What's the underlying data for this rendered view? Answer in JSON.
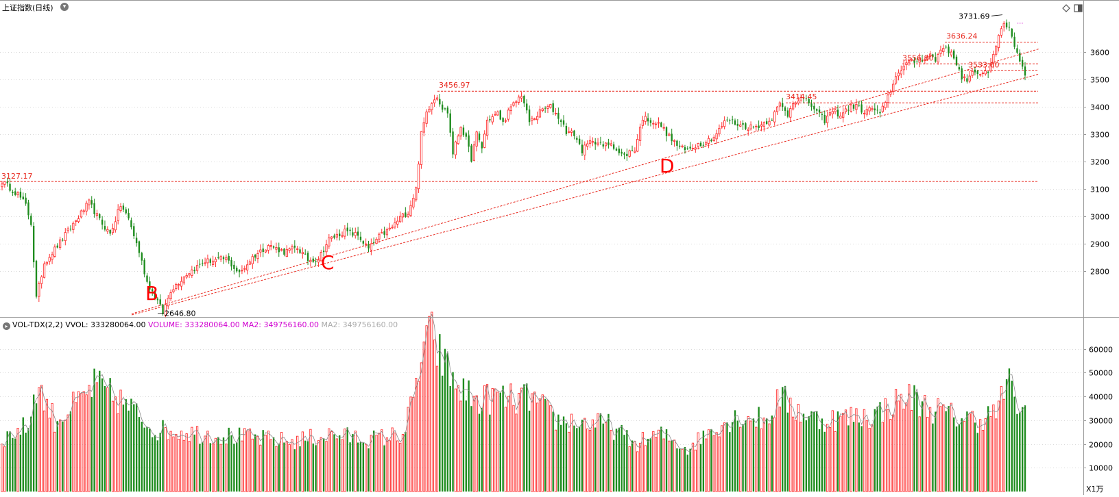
{
  "header": {
    "title": "上证指数(日线)",
    "title_button_icon": "chevron-down-icon",
    "corner_icons": [
      "diamond-icon",
      "panel-toggle-icon"
    ]
  },
  "volume_header": {
    "indicator": "VOL-TDX(2,2)",
    "vvol": "VVOL: 333280064.00",
    "volume": "VOLUME: 333280064.00",
    "ma2": "MA2: 349756160.00",
    "ma2_ghost": "MA2: 349756160.00"
  },
  "unit_label": "X1万",
  "colors": {
    "up": "#ff3232",
    "down": "#1e8c1e",
    "grid": "#b4b4b4",
    "guide": "#e8281e",
    "ma": "#888888",
    "axis": "#999999"
  },
  "chart_data": [
    {
      "type": "candlestick",
      "title": "上证指数(日线)",
      "ylim": [
        2640,
        3740
      ],
      "y_ticks": [
        2800,
        2900,
        3000,
        3100,
        3200,
        3300,
        3400,
        3500,
        3600
      ],
      "grid": true,
      "annotations": {
        "price_labels": [
          {
            "text": "3127.17",
            "value": 3127.17
          },
          {
            "text": "3456.97",
            "value": 3456.97
          },
          {
            "text": "3414.45",
            "value": 3414.45
          },
          {
            "text": "3556.80",
            "value": 3556.8
          },
          {
            "text": "3636.24",
            "value": 3636.24
          },
          {
            "text": "3533.60",
            "value": 3533.6
          },
          {
            "text": "3731.69",
            "value": 3731.69
          },
          {
            "text": "2646.80",
            "value": 2646.8
          }
        ],
        "letters": [
          "B",
          "C",
          "D"
        ]
      }
    },
    {
      "type": "bar",
      "title": "VOL-TDX(2,2)",
      "ylim": [
        0,
        68000
      ],
      "y_ticks": [
        10000,
        20000,
        30000,
        40000,
        50000,
        60000
      ],
      "unit": "X1万",
      "grid": true
    }
  ]
}
